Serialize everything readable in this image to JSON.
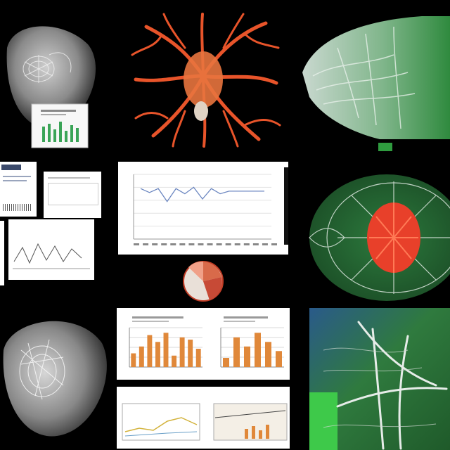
{
  "collage": {
    "panels": [
      {
        "id": "organ-top-left",
        "type": "grayscale-scan"
      },
      {
        "id": "vascular-orange",
        "type": "3d-render"
      },
      {
        "id": "green-mesh-top",
        "type": "3d-render"
      },
      {
        "id": "document-grid",
        "type": "documents"
      },
      {
        "id": "line-chart-center",
        "type": "chart"
      },
      {
        "id": "green-red-sphere",
        "type": "3d-render"
      },
      {
        "id": "organ-bottom-left",
        "type": "grayscale-scan"
      },
      {
        "id": "bar-charts-bottom",
        "type": "charts"
      },
      {
        "id": "green-mesh-bottom",
        "type": "3d-render"
      }
    ],
    "colors": {
      "background": "#000000",
      "vessel_orange": "#e8542a",
      "mesh_green": "#3f9a4a",
      "mesh_white": "#d9e6dd",
      "chart_line": "#6b86c0",
      "bar_orange": "#e0883a"
    }
  },
  "chart_data": [
    {
      "type": "line",
      "x": [
        1,
        2,
        3,
        4,
        5,
        6,
        7,
        8,
        9,
        10,
        11,
        12,
        13,
        14,
        15
      ],
      "series": [
        {
          "values": [
            0.78,
            0.72,
            0.78,
            0.58,
            0.78,
            0.7,
            0.8,
            0.62,
            0.78,
            0.7,
            0.74,
            0.74,
            0.74,
            0.74,
            0.74
          ]
        }
      ]
    },
    {
      "type": "bar",
      "series": [
        {
          "values": [
            12,
            18,
            28,
            22,
            30,
            10,
            26,
            24,
            16
          ]
        }
      ]
    },
    {
      "type": "bar",
      "series": [
        {
          "values": [
            8,
            26,
            18,
            30,
            22,
            14
          ]
        }
      ]
    }
  ]
}
